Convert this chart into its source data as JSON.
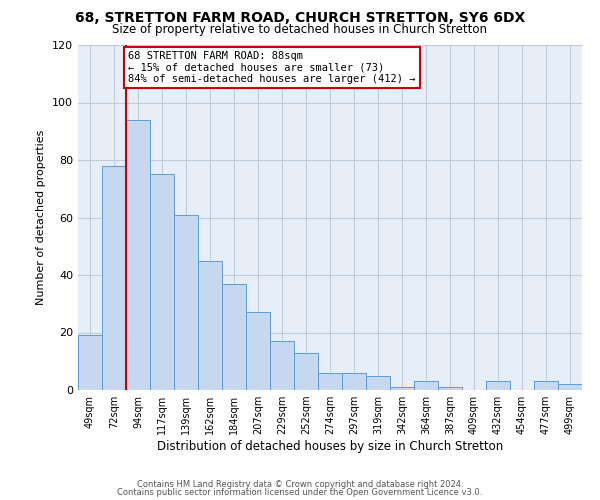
{
  "title": "68, STRETTON FARM ROAD, CHURCH STRETTON, SY6 6DX",
  "subtitle": "Size of property relative to detached houses in Church Stretton",
  "xlabel": "Distribution of detached houses by size in Church Stretton",
  "ylabel": "Number of detached properties",
  "bar_labels": [
    "49sqm",
    "72sqm",
    "94sqm",
    "117sqm",
    "139sqm",
    "162sqm",
    "184sqm",
    "207sqm",
    "229sqm",
    "252sqm",
    "274sqm",
    "297sqm",
    "319sqm",
    "342sqm",
    "364sqm",
    "387sqm",
    "409sqm",
    "432sqm",
    "454sqm",
    "477sqm",
    "499sqm"
  ],
  "bar_values": [
    19,
    78,
    94,
    75,
    61,
    45,
    37,
    27,
    17,
    13,
    6,
    6,
    5,
    1,
    3,
    1,
    0,
    3,
    0,
    3,
    2
  ],
  "bar_color": "#c5d8f0",
  "bar_edge_color": "#5b9bd5",
  "vline_color": "#cc0000",
  "annotation_title": "68 STRETTON FARM ROAD: 88sqm",
  "annotation_line1": "← 15% of detached houses are smaller (73)",
  "annotation_line2": "84% of semi-detached houses are larger (412) →",
  "annotation_box_color": "#ffffff",
  "annotation_box_edge": "#cc0000",
  "ylim": [
    0,
    120
  ],
  "yticks": [
    0,
    20,
    40,
    60,
    80,
    100,
    120
  ],
  "plot_bg_color": "#e8eef7",
  "background_color": "#ffffff",
  "grid_color": "#c0ccdd",
  "footer1": "Contains HM Land Registry data © Crown copyright and database right 2024.",
  "footer2": "Contains public sector information licensed under the Open Government Licence v3.0."
}
